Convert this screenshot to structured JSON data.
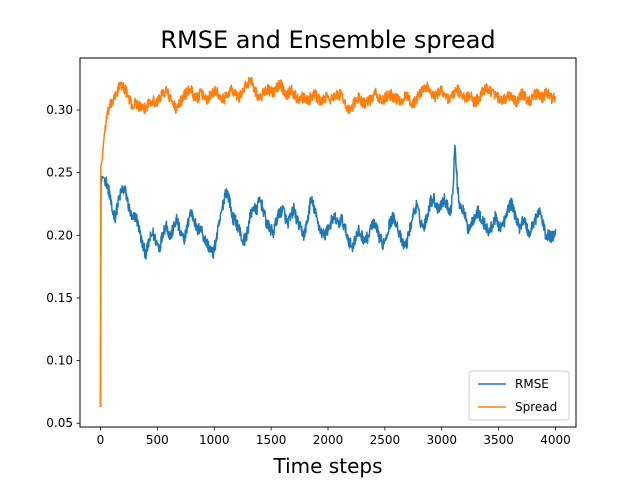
{
  "chart_data": {
    "type": "line",
    "title": "RMSE and Ensemble spread",
    "xlabel": "Time steps",
    "ylabel": "",
    "xlim": [
      -180,
      4180
    ],
    "ylim": [
      0.047,
      0.3415
    ],
    "x_ticks": [
      0,
      500,
      1000,
      1500,
      2000,
      2500,
      3000,
      3500,
      4000
    ],
    "y_ticks": [
      0.05,
      0.1,
      0.15,
      0.2,
      0.25,
      0.3
    ],
    "y_tick_labels": [
      "0.05",
      "0.10",
      "0.15",
      "0.20",
      "0.25",
      "0.30"
    ],
    "grid": false,
    "legend_position": "lower-right",
    "series": [
      {
        "name": "RMSE",
        "color": "#1f77b4",
        "noise": 0.005,
        "points": [
          [
            0,
            0.063
          ],
          [
            5,
            0.24
          ],
          [
            15,
            0.247
          ],
          [
            40,
            0.245
          ],
          [
            60,
            0.24
          ],
          [
            80,
            0.233
          ],
          [
            100,
            0.22
          ],
          [
            130,
            0.215
          ],
          [
            160,
            0.228
          ],
          [
            190,
            0.237
          ],
          [
            220,
            0.235
          ],
          [
            250,
            0.222
          ],
          [
            280,
            0.212
          ],
          [
            310,
            0.216
          ],
          [
            340,
            0.205
          ],
          [
            370,
            0.192
          ],
          [
            400,
            0.185
          ],
          [
            430,
            0.196
          ],
          [
            460,
            0.202
          ],
          [
            490,
            0.195
          ],
          [
            520,
            0.19
          ],
          [
            550,
            0.203
          ],
          [
            580,
            0.209
          ],
          [
            610,
            0.198
          ],
          [
            640,
            0.205
          ],
          [
            670,
            0.213
          ],
          [
            700,
            0.202
          ],
          [
            730,
            0.196
          ],
          [
            760,
            0.205
          ],
          [
            790,
            0.219
          ],
          [
            820,
            0.214
          ],
          [
            850,
            0.203
          ],
          [
            880,
            0.207
          ],
          [
            910,
            0.198
          ],
          [
            940,
            0.193
          ],
          [
            970,
            0.188
          ],
          [
            990,
            0.185
          ],
          [
            1010,
            0.193
          ],
          [
            1040,
            0.207
          ],
          [
            1070,
            0.221
          ],
          [
            1100,
            0.236
          ],
          [
            1130,
            0.23
          ],
          [
            1160,
            0.214
          ],
          [
            1190,
            0.211
          ],
          [
            1220,
            0.205
          ],
          [
            1250,
            0.195
          ],
          [
            1280,
            0.198
          ],
          [
            1310,
            0.212
          ],
          [
            1340,
            0.223
          ],
          [
            1370,
            0.219
          ],
          [
            1400,
            0.229
          ],
          [
            1430,
            0.221
          ],
          [
            1460,
            0.209
          ],
          [
            1490,
            0.205
          ],
          [
            1520,
            0.202
          ],
          [
            1550,
            0.213
          ],
          [
            1580,
            0.219
          ],
          [
            1610,
            0.22
          ],
          [
            1640,
            0.209
          ],
          [
            1670,
            0.214
          ],
          [
            1700,
            0.221
          ],
          [
            1730,
            0.211
          ],
          [
            1760,
            0.205
          ],
          [
            1790,
            0.2
          ],
          [
            1820,
            0.212
          ],
          [
            1850,
            0.229
          ],
          [
            1880,
            0.221
          ],
          [
            1910,
            0.21
          ],
          [
            1940,
            0.203
          ],
          [
            1970,
            0.2
          ],
          [
            2000,
            0.205
          ],
          [
            2030,
            0.211
          ],
          [
            2060,
            0.214
          ],
          [
            2090,
            0.209
          ],
          [
            2120,
            0.213
          ],
          [
            2150,
            0.205
          ],
          [
            2180,
            0.197
          ],
          [
            2210,
            0.19
          ],
          [
            2240,
            0.197
          ],
          [
            2270,
            0.203
          ],
          [
            2300,
            0.199
          ],
          [
            2330,
            0.196
          ],
          [
            2360,
            0.2
          ],
          [
            2390,
            0.21
          ],
          [
            2420,
            0.206
          ],
          [
            2450,
            0.199
          ],
          [
            2480,
            0.193
          ],
          [
            2510,
            0.199
          ],
          [
            2540,
            0.209
          ],
          [
            2570,
            0.214
          ],
          [
            2600,
            0.211
          ],
          [
            2630,
            0.2
          ],
          [
            2660,
            0.192
          ],
          [
            2690,
            0.193
          ],
          [
            2720,
            0.205
          ],
          [
            2750,
            0.217
          ],
          [
            2780,
            0.224
          ],
          [
            2810,
            0.212
          ],
          [
            2840,
            0.206
          ],
          [
            2870,
            0.215
          ],
          [
            2900,
            0.227
          ],
          [
            2930,
            0.229
          ],
          [
            2960,
            0.222
          ],
          [
            2990,
            0.224
          ],
          [
            3020,
            0.229
          ],
          [
            3050,
            0.223
          ],
          [
            3080,
            0.22
          ],
          [
            3100,
            0.238
          ],
          [
            3115,
            0.272
          ],
          [
            3130,
            0.25
          ],
          [
            3150,
            0.227
          ],
          [
            3170,
            0.223
          ],
          [
            3200,
            0.217
          ],
          [
            3230,
            0.205
          ],
          [
            3260,
            0.209
          ],
          [
            3290,
            0.216
          ],
          [
            3320,
            0.219
          ],
          [
            3350,
            0.211
          ],
          [
            3380,
            0.209
          ],
          [
            3410,
            0.202
          ],
          [
            3440,
            0.207
          ],
          [
            3470,
            0.214
          ],
          [
            3500,
            0.208
          ],
          [
            3530,
            0.207
          ],
          [
            3560,
            0.213
          ],
          [
            3590,
            0.223
          ],
          [
            3620,
            0.225
          ],
          [
            3650,
            0.214
          ],
          [
            3680,
            0.206
          ],
          [
            3710,
            0.212
          ],
          [
            3740,
            0.209
          ],
          [
            3770,
            0.2
          ],
          [
            3800,
            0.209
          ],
          [
            3830,
            0.214
          ],
          [
            3860,
            0.22
          ],
          [
            3880,
            0.213
          ],
          [
            3900,
            0.205
          ],
          [
            3920,
            0.199
          ],
          [
            3940,
            0.2
          ],
          [
            3960,
            0.198
          ],
          [
            3980,
            0.2
          ],
          [
            4000,
            0.205
          ]
        ]
      },
      {
        "name": "Spread",
        "color": "#ff7f0e",
        "noise": 0.0045,
        "points": [
          [
            0,
            0.063
          ],
          [
            3,
            0.255
          ],
          [
            15,
            0.26
          ],
          [
            30,
            0.278
          ],
          [
            50,
            0.291
          ],
          [
            70,
            0.3
          ],
          [
            100,
            0.306
          ],
          [
            130,
            0.31
          ],
          [
            160,
            0.318
          ],
          [
            190,
            0.32
          ],
          [
            220,
            0.316
          ],
          [
            250,
            0.309
          ],
          [
            280,
            0.303
          ],
          [
            310,
            0.306
          ],
          [
            340,
            0.303
          ],
          [
            370,
            0.3
          ],
          [
            400,
            0.302
          ],
          [
            430,
            0.307
          ],
          [
            460,
            0.308
          ],
          [
            490,
            0.305
          ],
          [
            520,
            0.31
          ],
          [
            550,
            0.313
          ],
          [
            580,
            0.316
          ],
          [
            610,
            0.309
          ],
          [
            640,
            0.305
          ],
          [
            670,
            0.3
          ],
          [
            700,
            0.306
          ],
          [
            730,
            0.311
          ],
          [
            760,
            0.314
          ],
          [
            790,
            0.317
          ],
          [
            820,
            0.312
          ],
          [
            850,
            0.309
          ],
          [
            880,
            0.313
          ],
          [
            910,
            0.311
          ],
          [
            940,
            0.308
          ],
          [
            970,
            0.313
          ],
          [
            1000,
            0.316
          ],
          [
            1030,
            0.314
          ],
          [
            1060,
            0.311
          ],
          [
            1090,
            0.309
          ],
          [
            1120,
            0.313
          ],
          [
            1150,
            0.317
          ],
          [
            1180,
            0.313
          ],
          [
            1210,
            0.31
          ],
          [
            1240,
            0.313
          ],
          [
            1270,
            0.318
          ],
          [
            1300,
            0.322
          ],
          [
            1320,
            0.325
          ],
          [
            1340,
            0.32
          ],
          [
            1370,
            0.314
          ],
          [
            1400,
            0.309
          ],
          [
            1430,
            0.313
          ],
          [
            1460,
            0.317
          ],
          [
            1490,
            0.315
          ],
          [
            1520,
            0.313
          ],
          [
            1550,
            0.318
          ],
          [
            1580,
            0.321
          ],
          [
            1610,
            0.316
          ],
          [
            1640,
            0.312
          ],
          [
            1670,
            0.316
          ],
          [
            1700,
            0.313
          ],
          [
            1730,
            0.309
          ],
          [
            1760,
            0.311
          ],
          [
            1790,
            0.31
          ],
          [
            1820,
            0.307
          ],
          [
            1850,
            0.31
          ],
          [
            1880,
            0.313
          ],
          [
            1910,
            0.309
          ],
          [
            1940,
            0.307
          ],
          [
            1970,
            0.309
          ],
          [
            2000,
            0.311
          ],
          [
            2030,
            0.308
          ],
          [
            2060,
            0.31
          ],
          [
            2090,
            0.313
          ],
          [
            2120,
            0.311
          ],
          [
            2150,
            0.306
          ],
          [
            2180,
            0.299
          ],
          [
            2210,
            0.302
          ],
          [
            2240,
            0.307
          ],
          [
            2270,
            0.31
          ],
          [
            2300,
            0.307
          ],
          [
            2330,
            0.305
          ],
          [
            2360,
            0.307
          ],
          [
            2390,
            0.31
          ],
          [
            2420,
            0.313
          ],
          [
            2450,
            0.309
          ],
          [
            2480,
            0.307
          ],
          [
            2510,
            0.31
          ],
          [
            2540,
            0.313
          ],
          [
            2570,
            0.311
          ],
          [
            2600,
            0.309
          ],
          [
            2630,
            0.307
          ],
          [
            2660,
            0.309
          ],
          [
            2690,
            0.312
          ],
          [
            2720,
            0.307
          ],
          [
            2750,
            0.305
          ],
          [
            2780,
            0.309
          ],
          [
            2810,
            0.313
          ],
          [
            2840,
            0.317
          ],
          [
            2870,
            0.319
          ],
          [
            2900,
            0.314
          ],
          [
            2930,
            0.31
          ],
          [
            2960,
            0.312
          ],
          [
            2990,
            0.316
          ],
          [
            3020,
            0.314
          ],
          [
            3050,
            0.309
          ],
          [
            3080,
            0.31
          ],
          [
            3110,
            0.313
          ],
          [
            3140,
            0.316
          ],
          [
            3170,
            0.312
          ],
          [
            3200,
            0.309
          ],
          [
            3230,
            0.311
          ],
          [
            3260,
            0.31
          ],
          [
            3290,
            0.306
          ],
          [
            3320,
            0.309
          ],
          [
            3350,
            0.313
          ],
          [
            3380,
            0.316
          ],
          [
            3410,
            0.318
          ],
          [
            3440,
            0.314
          ],
          [
            3470,
            0.311
          ],
          [
            3500,
            0.309
          ],
          [
            3530,
            0.306
          ],
          [
            3560,
            0.309
          ],
          [
            3590,
            0.311
          ],
          [
            3620,
            0.309
          ],
          [
            3650,
            0.306
          ],
          [
            3680,
            0.31
          ],
          [
            3710,
            0.313
          ],
          [
            3740,
            0.309
          ],
          [
            3770,
            0.307
          ],
          [
            3800,
            0.31
          ],
          [
            3830,
            0.313
          ],
          [
            3860,
            0.311
          ],
          [
            3880,
            0.309
          ],
          [
            3900,
            0.311
          ],
          [
            3920,
            0.314
          ],
          [
            3940,
            0.313
          ],
          [
            3960,
            0.309
          ],
          [
            3980,
            0.311
          ],
          [
            4000,
            0.31
          ]
        ]
      }
    ]
  }
}
